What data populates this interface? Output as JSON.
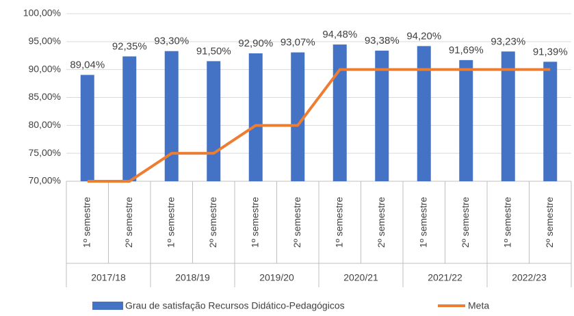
{
  "chart_data": {
    "type": "bar",
    "categories": [
      "1º semestre",
      "2º semestre",
      "1º semestre",
      "2º semestre",
      "1º semestre",
      "2º semestre",
      "1º semestre",
      "2º semestre",
      "1º semestre",
      "2º semestre",
      "1º semestre",
      "2º semestre"
    ],
    "groups": [
      "2017/18",
      "2018/19",
      "2019/20",
      "2020/21",
      "2021/22",
      "2022/23"
    ],
    "series": [
      {
        "name": "Grau de satisfação Recursos Didático-Pedagógicos",
        "type": "bar",
        "color": "#4472c4",
        "values": [
          89.04,
          92.35,
          93.3,
          91.5,
          92.9,
          93.07,
          94.48,
          93.38,
          94.2,
          91.69,
          93.23,
          91.39
        ],
        "value_labels": [
          "89,04%",
          "92,35%",
          "93,30%",
          "91,50%",
          "92,90%",
          "93,07%",
          "94,48%",
          "93,38%",
          "94,20%",
          "91,69%",
          "93,23%",
          "91,39%"
        ]
      },
      {
        "name": "Meta",
        "type": "line",
        "color": "#ed7d31",
        "values": [
          70,
          70,
          75,
          75,
          80,
          80,
          90,
          90,
          90,
          90,
          90,
          90
        ]
      }
    ],
    "ylim": [
      70,
      100
    ],
    "yticks": [
      {
        "value": 70,
        "label": "70,00%"
      },
      {
        "value": 75,
        "label": "75,00%"
      },
      {
        "value": 80,
        "label": "80,00%"
      },
      {
        "value": 85,
        "label": "85,00%"
      },
      {
        "value": 90,
        "label": "90,00%"
      },
      {
        "value": 95,
        "label": "95,00%"
      },
      {
        "value": 100,
        "label": "100,00%"
      }
    ],
    "grid": true
  }
}
